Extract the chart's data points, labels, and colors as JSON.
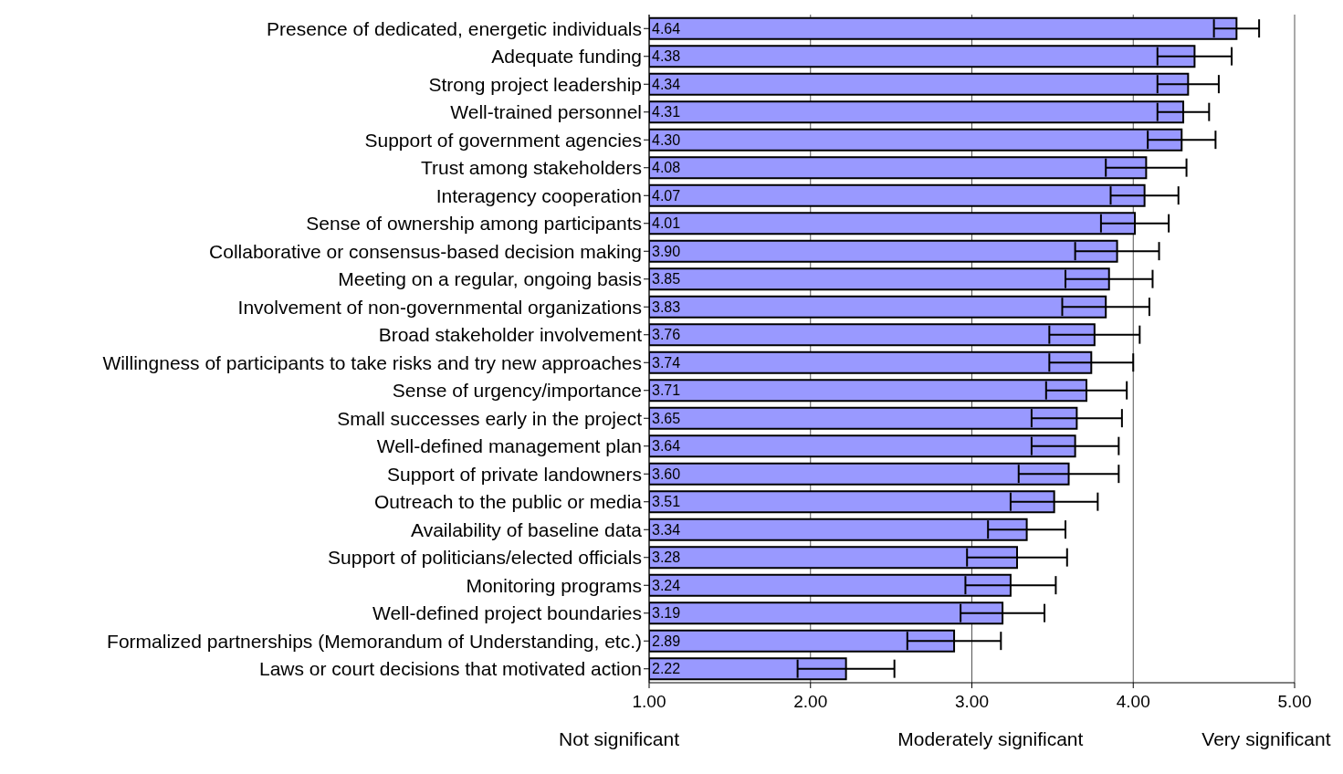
{
  "chart_data": {
    "type": "bar",
    "orientation": "horizontal",
    "categories": [
      "Presence of dedicated, energetic individuals",
      "Adequate funding",
      "Strong project leadership",
      "Well-trained personnel",
      "Support of government agencies",
      "Trust among stakeholders",
      "Interagency cooperation",
      "Sense of ownership among participants",
      "Collaborative or consensus-based decision making",
      "Meeting on a regular, ongoing basis",
      "Involvement of non-governmental organizations",
      "Broad stakeholder involvement",
      "Willingness of participants to take risks and try new approaches",
      "Sense of urgency/importance",
      "Small successes early in the project",
      "Well-defined management plan",
      "Support of private landowners",
      "Outreach to the public or media",
      "Availability of baseline data",
      "Support of politicians/elected officials",
      "Monitoring programs",
      "Well-defined project boundaries",
      "Formalized partnerships (Memorandum of Understanding, etc.)",
      "Laws or court decisions that motivated action"
    ],
    "values": [
      4.64,
      4.38,
      4.34,
      4.31,
      4.3,
      4.08,
      4.07,
      4.01,
      3.9,
      3.85,
      3.83,
      3.76,
      3.74,
      3.71,
      3.65,
      3.64,
      3.6,
      3.51,
      3.34,
      3.28,
      3.24,
      3.19,
      2.89,
      2.22
    ],
    "value_labels": [
      "4.64",
      "4.38",
      "4.34",
      "4.31",
      "4.30",
      "4.08",
      "4.07",
      "4.01",
      "3.90",
      "3.85",
      "3.83",
      "3.76",
      "3.74",
      "3.71",
      "3.65",
      "3.64",
      "3.60",
      "3.51",
      "3.34",
      "3.28",
      "3.24",
      "3.19",
      "2.89",
      "2.22"
    ],
    "errors": [
      0.14,
      0.23,
      0.19,
      0.16,
      0.21,
      0.25,
      0.21,
      0.21,
      0.26,
      0.27,
      0.27,
      0.28,
      0.26,
      0.25,
      0.28,
      0.27,
      0.31,
      0.27,
      0.24,
      0.31,
      0.28,
      0.26,
      0.29,
      0.3
    ],
    "color": "#9999ff",
    "xlim": [
      1,
      5
    ],
    "xticks": [
      {
        "value": 1,
        "label": "1.00"
      },
      {
        "value": 2,
        "label": "2.00"
      },
      {
        "value": 3,
        "label": "3.00"
      },
      {
        "value": 4,
        "label": "4.00"
      },
      {
        "value": 5,
        "label": "5.00"
      }
    ],
    "grid": "x",
    "annotations": [
      "Not significant",
      "Moderately significant",
      "Very significant"
    ]
  }
}
